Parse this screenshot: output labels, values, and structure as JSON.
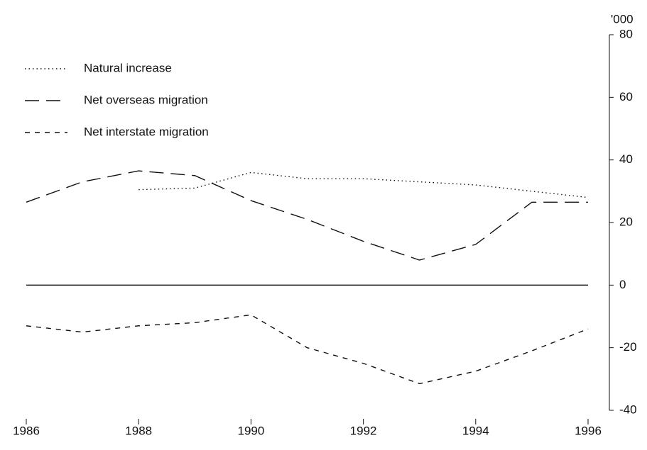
{
  "chart_data": {
    "type": "line",
    "y_unit_label": "'000",
    "x": [
      1986,
      1987,
      1988,
      1989,
      1990,
      1991,
      1992,
      1993,
      1994,
      1995,
      1996
    ],
    "series": [
      {
        "name": "Natural increase",
        "color": "#111111",
        "dash": "dotted",
        "values": [
          null,
          null,
          30.5,
          31,
          36,
          34,
          34,
          33,
          32,
          30,
          28
        ]
      },
      {
        "name": "Net overseas migration",
        "color": "#111111",
        "dash": "long",
        "values": [
          26.5,
          33,
          36.5,
          35,
          27,
          21,
          14,
          8,
          13,
          26.5,
          26.5
        ]
      },
      {
        "name": "Net interstate migration",
        "color": "#111111",
        "dash": "short",
        "values": [
          -13,
          -15,
          -13,
          -12,
          -9.5,
          -20,
          -25,
          -31.5,
          -27.5,
          -21,
          -14
        ]
      }
    ],
    "xlim": [
      1986,
      1996
    ],
    "xticks": [
      1986,
      1988,
      1990,
      1992,
      1994,
      1996
    ],
    "ylim": [
      -40,
      80
    ],
    "yticks": [
      -40,
      -20,
      0,
      20,
      40,
      60,
      80
    ],
    "y_axis_side": "right",
    "zero_line": true,
    "grid": false,
    "legend": "upper left"
  }
}
